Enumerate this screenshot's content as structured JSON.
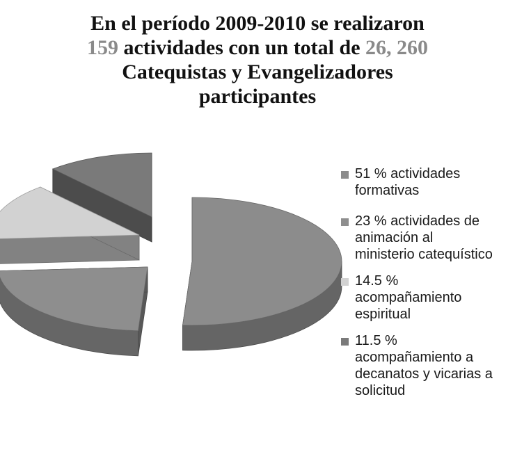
{
  "title": {
    "line1": "En el período 2009-2010 se realizaron",
    "line2_number": "159",
    "line2_text": " actividades con un total de ",
    "line2_total": "26, 260",
    "line3": "Catequistas y Evangelizadores",
    "line4": "participantes"
  },
  "chart_data": {
    "type": "pie",
    "slices": [
      {
        "label": "51 %  actividades formativas",
        "value": 51,
        "color": "#8c8c8c"
      },
      {
        "label": "23 %  actividades de animación al ministerio catequístico",
        "value": 23,
        "color": "#8e8e8e"
      },
      {
        "label": "14.5 % acompañamiento espiritual",
        "value": 14.5,
        "color": "#d2d2d2"
      },
      {
        "label": "11.5 % acompañamiento a decanatos y vicarias a solicitud",
        "value": 11.5,
        "color": "#7a7a7a"
      }
    ],
    "legend_position": "right"
  },
  "legend": {
    "items": [
      {
        "lines": [
          "51 %  actividades",
          "formativas"
        ]
      },
      {
        "lines": [
          "23 %  actividades de",
          "animación al",
          "ministerio catequístico"
        ]
      },
      {
        "lines": [
          "14.5 %",
          "acompañamiento",
          "espiritual"
        ]
      },
      {
        "lines": [
          "11.5 %",
          "acompañamiento a",
          "decanatos y vicarias a",
          "solicitud"
        ]
      }
    ]
  }
}
